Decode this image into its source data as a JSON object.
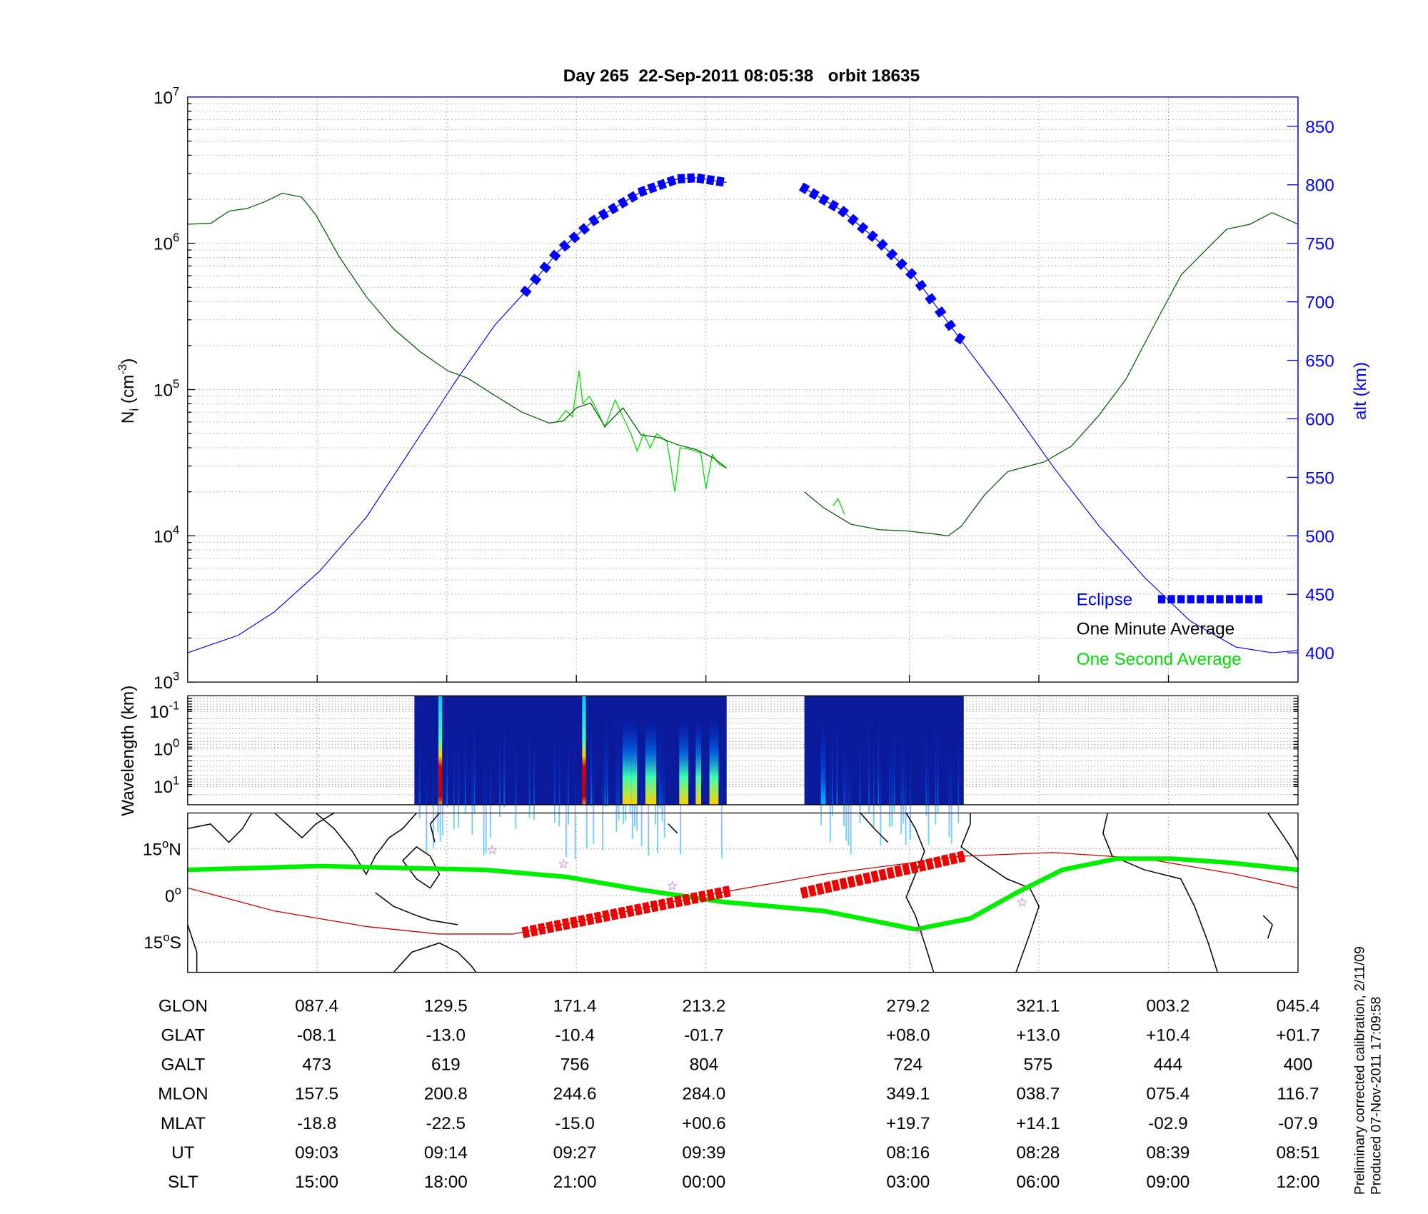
{
  "colors": {
    "alt": "#0000ff",
    "minute_avg": "#006400",
    "second_avg": "#00dd00",
    "eclipse": "#0000ff",
    "track": "#cc0000",
    "mag_eq": "#00ee00",
    "star": "#cc33cc"
  },
  "chart_data": [
    {
      "type": "line",
      "title": "Day 265  22-Sep-2011 08:05:38   orbit 18635",
      "ylabel": "N",
      "ylabel_sub": "i",
      "ylabel_unit": " (cm",
      "ylabel_exp": "-3",
      "ylabel_close": ")",
      "y2label": "alt (km)",
      "yscale": "log",
      "ylim": [
        1000,
        10000000
      ],
      "yticks": [
        {
          "base": "10",
          "exp": "3"
        },
        {
          "base": "10",
          "exp": "4"
        },
        {
          "base": "10",
          "exp": "5"
        },
        {
          "base": "10",
          "exp": "6"
        },
        {
          "base": "10",
          "exp": "7"
        }
      ],
      "y2lim": [
        375,
        875
      ],
      "y2ticks": [
        "400",
        "450",
        "500",
        "550",
        "600",
        "650",
        "700",
        "750",
        "800",
        "850"
      ],
      "xlim": [
        0,
        8.57
      ],
      "xticks": [
        1,
        2,
        3,
        4,
        5.57,
        6.57,
        7.57
      ],
      "grid": true,
      "legend": {
        "position": "bottom-right",
        "entries": [
          "Eclipse",
          "One Minute Average",
          "One Second Average"
        ]
      },
      "series": [
        {
          "name": "One Minute Average",
          "segments": [
            [
              [
                0,
                1350000.0
              ],
              [
                0.18,
                1370000.0
              ],
              [
                0.32,
                1660000.0
              ],
              [
                0.46,
                1730000.0
              ],
              [
                0.6,
                1930000.0
              ],
              [
                0.73,
                2200000.0
              ],
              [
                0.88,
                2070000.0
              ],
              [
                0.99,
                1560000.0
              ],
              [
                1.17,
                810000.0
              ],
              [
                1.38,
                430000.0
              ],
              [
                1.59,
                260000.0
              ],
              [
                1.8,
                180000.0
              ],
              [
                2.01,
                134000.0
              ],
              [
                2.16,
                120000.0
              ],
              [
                2.37,
                91000.0
              ],
              [
                2.58,
                70000.0
              ],
              [
                2.79,
                59000.0
              ],
              [
                2.9,
                61000.0
              ],
              [
                3.0,
                75000.0
              ],
              [
                3.11,
                81000.0
              ],
              [
                3.22,
                56000.0
              ],
              [
                3.36,
                75000.0
              ],
              [
                3.5,
                49000.0
              ],
              [
                3.64,
                47000.0
              ],
              [
                3.78,
                42000.0
              ],
              [
                3.92,
                39000.0
              ],
              [
                4.06,
                34000.0
              ],
              [
                4.16,
                29000.0
              ]
            ],
            [
              [
                4.76,
                20000.0
              ],
              [
                4.91,
                15500.0
              ],
              [
                5.12,
                12000.0
              ],
              [
                5.34,
                11000.0
              ],
              [
                5.55,
                10800.0
              ],
              [
                5.76,
                10300.0
              ],
              [
                5.87,
                10000.0
              ],
              [
                5.97,
                11600.0
              ],
              [
                6.15,
                19000.0
              ],
              [
                6.33,
                27500.0
              ],
              [
                6.61,
                32000.0
              ],
              [
                6.82,
                41000.0
              ],
              [
                7.03,
                66000.0
              ],
              [
                7.24,
                117000.0
              ],
              [
                7.46,
                275000.0
              ],
              [
                7.67,
                610000.0
              ],
              [
                7.88,
                940000.0
              ],
              [
                8.02,
                1250000.0
              ],
              [
                8.2,
                1350000.0
              ],
              [
                8.37,
                1620000.0
              ],
              [
                8.57,
                1350000.0
              ]
            ]
          ]
        },
        {
          "name": "One Second Average",
          "segments": [
            [
              [
                2.85,
                60000.0
              ],
              [
                2.92,
                72000.0
              ],
              [
                2.97,
                65000.0
              ],
              [
                3.02,
                135000.0
              ],
              [
                3.05,
                80000.0
              ],
              [
                3.1,
                90000.0
              ],
              [
                3.15,
                75000.0
              ],
              [
                3.22,
                55000.0
              ],
              [
                3.3,
                85000.0
              ],
              [
                3.36,
                65000.0
              ],
              [
                3.42,
                50000.0
              ],
              [
                3.47,
                38000.0
              ],
              [
                3.52,
                50000.0
              ],
              [
                3.57,
                40000.0
              ],
              [
                3.62,
                50000.0
              ],
              [
                3.7,
                44000.0
              ],
              [
                3.76,
                20000.0
              ],
              [
                3.8,
                40000.0
              ],
              [
                3.88,
                39000.0
              ],
              [
                3.96,
                37000.0
              ],
              [
                4.0,
                21000.0
              ],
              [
                4.05,
                36000.0
              ],
              [
                4.1,
                31000.0
              ],
              [
                4.16,
                29000.0
              ]
            ],
            [
              [
                4.98,
                16000.0
              ],
              [
                5.02,
                18000.0
              ],
              [
                5.07,
                14000.0
              ]
            ]
          ]
        },
        {
          "name": "Altitude",
          "axis": "y2",
          "segments": [
            [
              [
                0,
                400
              ],
              [
                0.39,
                415
              ],
              [
                0.67,
                435
              ],
              [
                1.02,
                470
              ],
              [
                1.38,
                516
              ],
              [
                1.73,
                575
              ],
              [
                2.08,
                634
              ],
              [
                2.37,
                680
              ],
              [
                2.61,
                709
              ],
              [
                2.86,
                743
              ],
              [
                3.14,
                770
              ],
              [
                3.5,
                794
              ],
              [
                3.78,
                805
              ],
              [
                3.92,
                806
              ],
              [
                4.16,
                802
              ]
            ],
            [
              [
                4.76,
                797
              ],
              [
                5.05,
                778
              ],
              [
                5.34,
                751
              ],
              [
                5.62,
                720
              ],
              [
                5.97,
                667
              ],
              [
                6.33,
                614
              ],
              [
                6.68,
                559
              ],
              [
                7.03,
                509
              ],
              [
                7.39,
                464
              ],
              [
                7.74,
                427
              ],
              [
                8.09,
                405
              ],
              [
                8.37,
                400
              ],
              [
                8.57,
                402
              ]
            ]
          ]
        },
        {
          "name": "Eclipse",
          "axis": "y2",
          "x_ranges": [
            [
              2.61,
              4.16
            ],
            [
              4.76,
              5.97
            ]
          ]
        }
      ]
    },
    {
      "type": "heatmap",
      "ylabel": "Wavelength (km)",
      "yscale": "log",
      "yticks": [
        {
          "base": "10",
          "exp": "-1"
        },
        {
          "base": "10",
          "exp": "0"
        },
        {
          "base": "10",
          "exp": "1"
        }
      ],
      "data_x_ranges": [
        [
          1.75,
          4.16
        ],
        [
          4.76,
          5.99
        ]
      ]
    },
    {
      "type": "line",
      "subtype": "map",
      "yticks": [
        {
          "label": "15",
          "deg": "o",
          "hem": "N",
          "lat": 15
        },
        {
          "label": "0",
          "deg": "o",
          "hem": "",
          "lat": 0
        },
        {
          "label": "15",
          "deg": "o",
          "hem": "S",
          "lat": -15
        }
      ],
      "ylim": [
        -25,
        26
      ],
      "magnetic_equator": [
        [
          0,
          8.2
        ],
        [
          1.02,
          9.4
        ],
        [
          2.3,
          8.2
        ],
        [
          2.93,
          5.9
        ],
        [
          3.5,
          1.8
        ],
        [
          4.13,
          -2.1
        ],
        [
          4.91,
          -5
        ],
        [
          5.62,
          -10.9
        ],
        [
          6.04,
          -7.4
        ],
        [
          6.4,
          0.9
        ],
        [
          6.75,
          8.2
        ],
        [
          7.17,
          11.8
        ],
        [
          7.6,
          11.8
        ],
        [
          8.02,
          10.6
        ],
        [
          8.57,
          8.2
        ]
      ],
      "orbit_track": [
        [
          0,
          2.4
        ],
        [
          0.67,
          -5
        ],
        [
          1.38,
          -10
        ],
        [
          1.94,
          -12.4
        ],
        [
          2.51,
          -12.4
        ],
        [
          3.07,
          -7.9
        ],
        [
          3.99,
          0
        ],
        [
          4.91,
          6.8
        ],
        [
          5.97,
          12.6
        ],
        [
          6.68,
          13.8
        ],
        [
          7.39,
          11.8
        ],
        [
          8.09,
          6.8
        ],
        [
          8.57,
          2.4
        ]
      ],
      "eclipse_track": [
        [
          [
            2.61,
            -11.8
          ],
          [
            4.16,
            1.2
          ]
        ],
        [
          [
            4.76,
            0.9
          ],
          [
            5.97,
            12.4
          ]
        ]
      ],
      "stars": [
        [
          2.35,
          14.7
        ],
        [
          2.9,
          10.3
        ],
        [
          3.74,
          3.2
        ],
        [
          5.65,
          -10.9
        ],
        [
          6.44,
          -2.1
        ]
      ]
    }
  ],
  "table": {
    "rows": [
      {
        "label": "GLON",
        "values": [
          "087.4",
          "129.5",
          "171.4",
          "213.2",
          "279.2",
          "321.1",
          "003.2",
          "045.4"
        ]
      },
      {
        "label": "GLAT",
        "values": [
          "-08.1",
          "-13.0",
          "-10.4",
          "-01.7",
          "+08.0",
          "+13.0",
          "+10.4",
          "+01.7"
        ]
      },
      {
        "label": "GALT",
        "values": [
          "473",
          "619",
          "756",
          "804",
          "724",
          "575",
          "444",
          "400"
        ]
      },
      {
        "label": "MLON",
        "values": [
          "157.5",
          "200.8",
          "244.6",
          "284.0",
          "349.1",
          "038.7",
          "075.4",
          "116.7"
        ]
      },
      {
        "label": "MLAT",
        "values": [
          "-18.8",
          "-22.5",
          "-15.0",
          "+00.6",
          "+19.7",
          "+14.1",
          "-02.9",
          "-07.9"
        ]
      },
      {
        "label": "UT",
        "values": [
          "09:03",
          "09:14",
          "09:27",
          "09:39",
          "08:16",
          "08:28",
          "08:39",
          "08:51"
        ]
      },
      {
        "label": "SLT",
        "values": [
          "15:00",
          "18:00",
          "21:00",
          "00:00",
          "03:00",
          "06:00",
          "09:00",
          "12:00"
        ]
      }
    ]
  },
  "footer": {
    "line1": "Preliminary corrected calibration, 2/11/09",
    "line2": "Produced 07-Nov-2011 17:09:58"
  }
}
